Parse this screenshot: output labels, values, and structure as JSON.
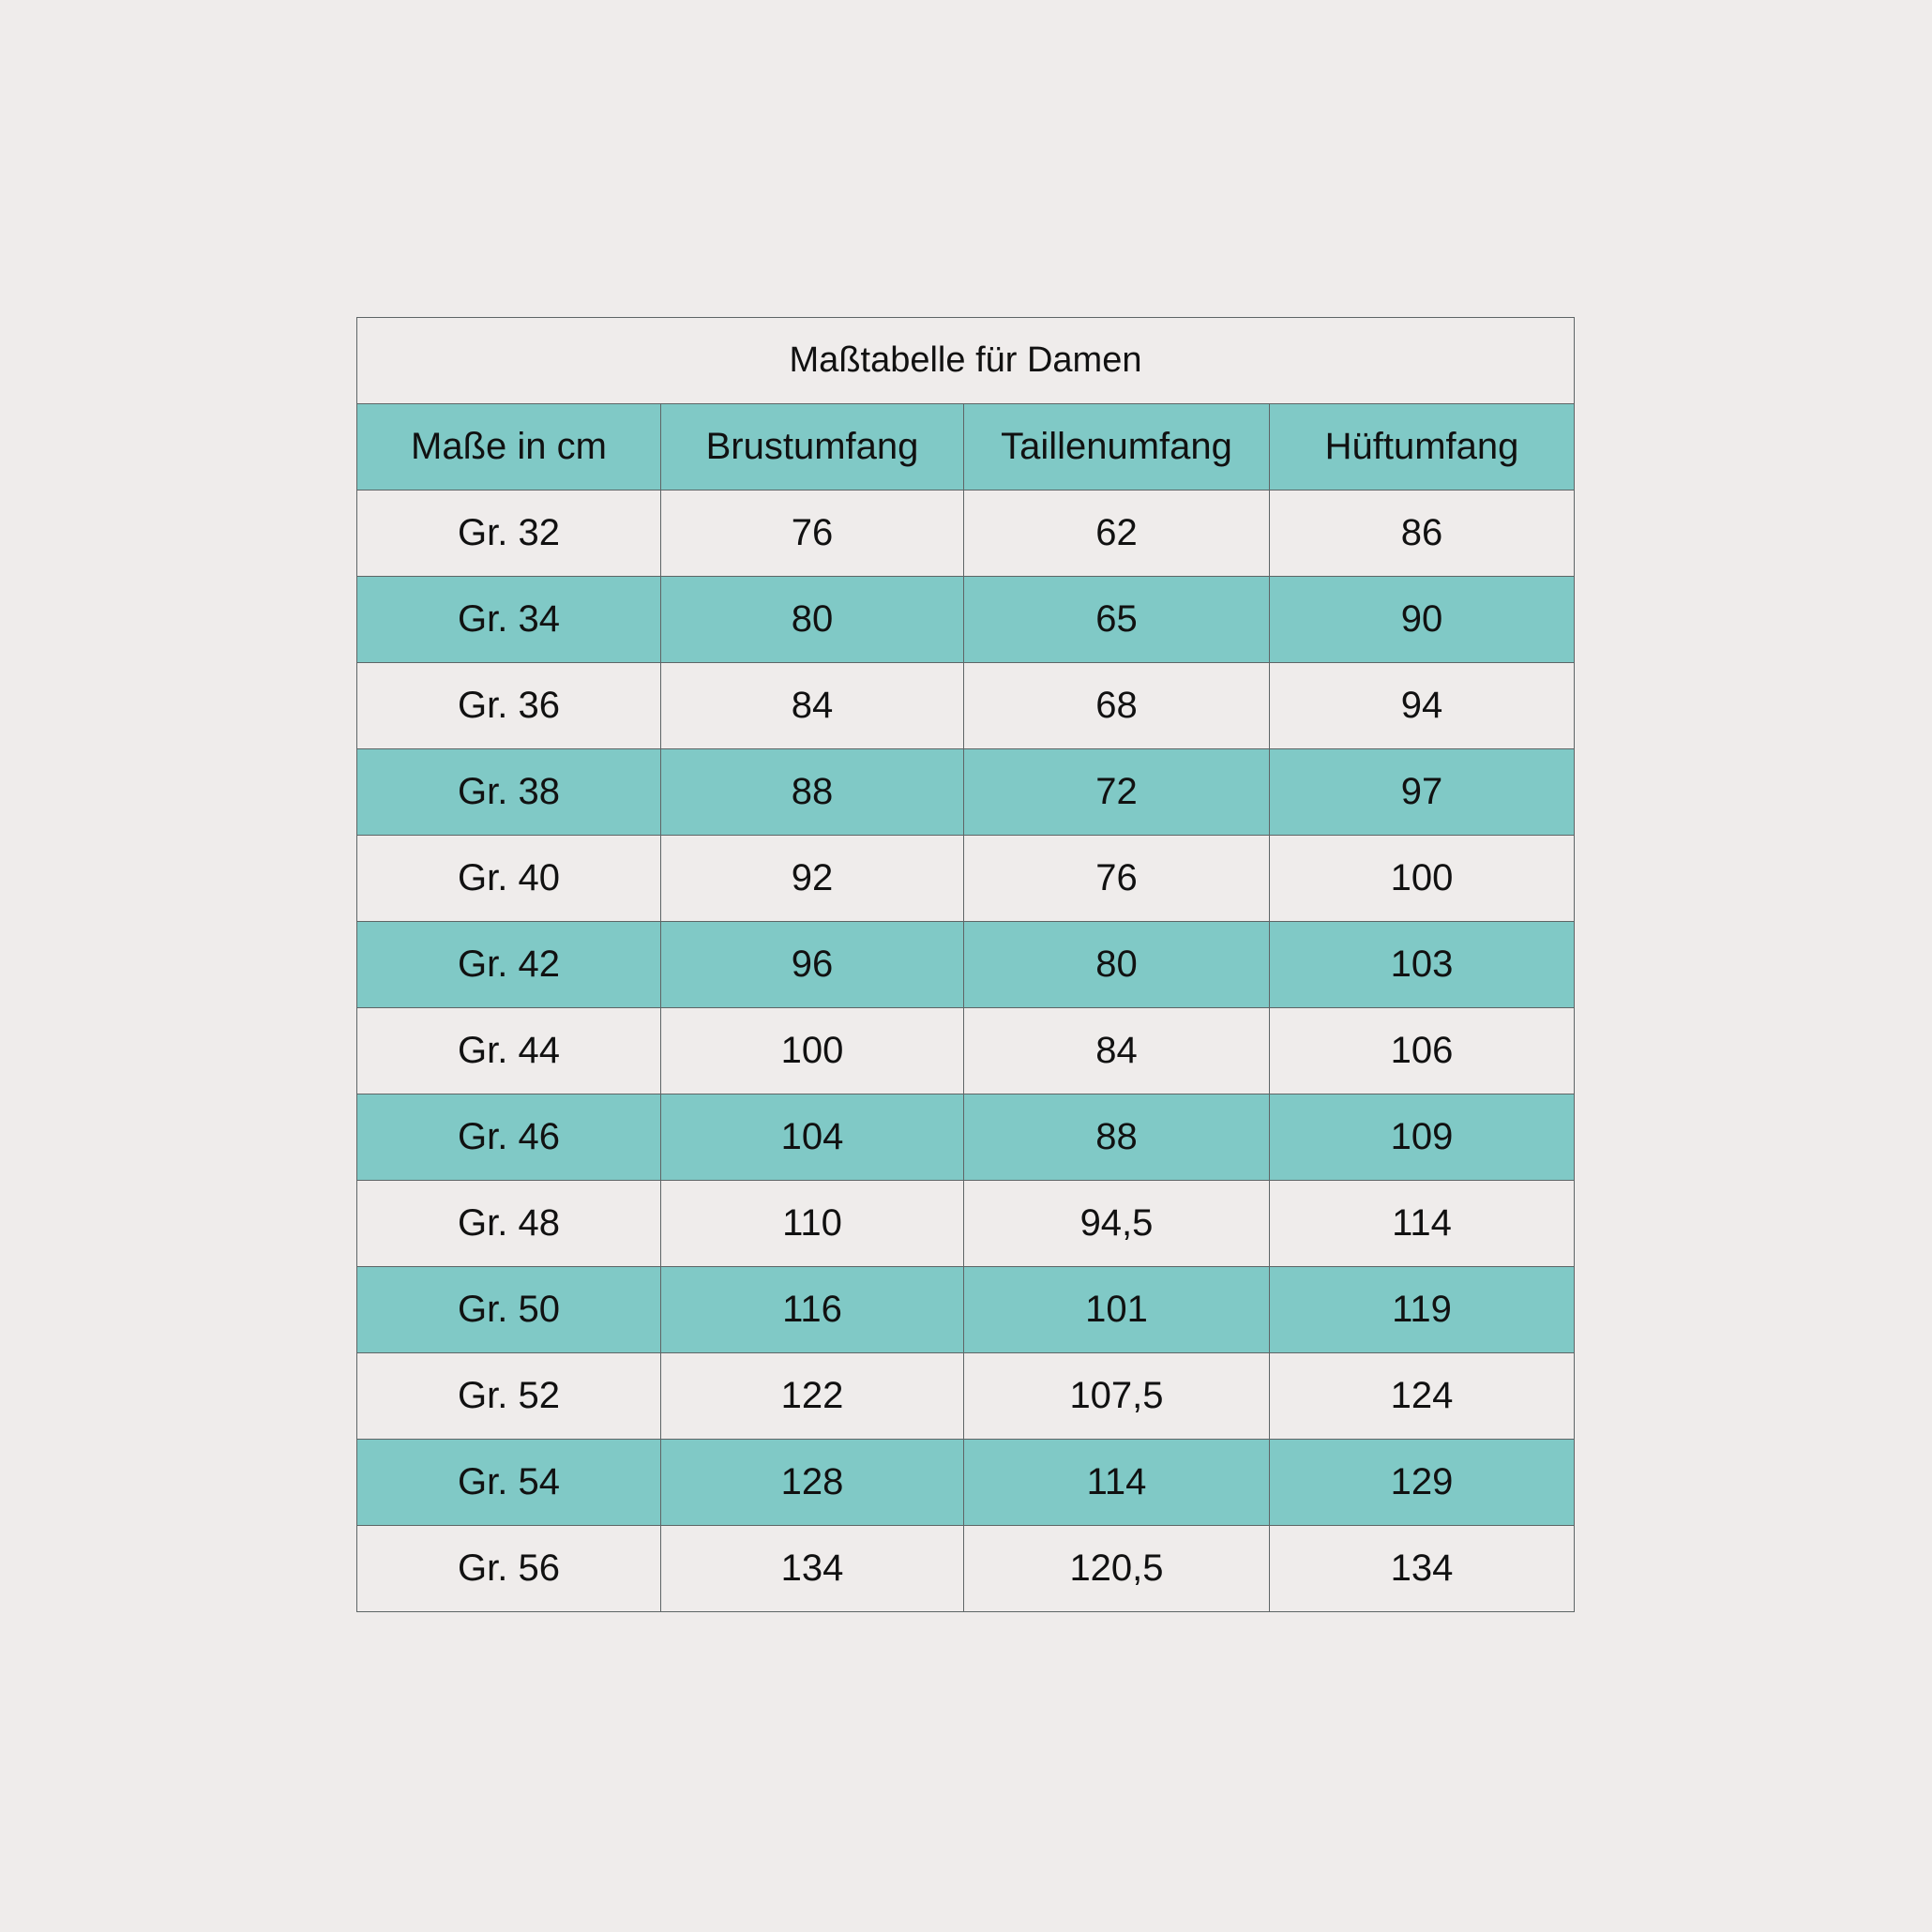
{
  "table": {
    "title": "Maßtabelle für Damen",
    "headers": [
      "Maße in cm",
      "Brustumfang",
      "Taillenumfang",
      "Hüftumfang"
    ],
    "rows": [
      [
        "Gr. 32",
        "76",
        "62",
        "86"
      ],
      [
        "Gr. 34",
        "80",
        "65",
        "90"
      ],
      [
        "Gr. 36",
        "84",
        "68",
        "94"
      ],
      [
        "Gr. 38",
        "88",
        "72",
        "97"
      ],
      [
        "Gr. 40",
        "92",
        "76",
        "100"
      ],
      [
        "Gr. 42",
        "96",
        "80",
        "103"
      ],
      [
        "Gr. 44",
        "100",
        "84",
        "106"
      ],
      [
        "Gr. 46",
        "104",
        "88",
        "109"
      ],
      [
        "Gr. 48",
        "110",
        "94,5",
        "114"
      ],
      [
        "Gr. 50",
        "116",
        "101",
        "119"
      ],
      [
        "Gr. 52",
        "122",
        "107,5",
        "124"
      ],
      [
        "Gr. 54",
        "128",
        "114",
        "129"
      ],
      [
        "Gr. 56",
        "134",
        "120,5",
        "134"
      ]
    ]
  },
  "colors": {
    "accent": "#80c9c6",
    "background": "#efeceb",
    "border": "#5e6566"
  }
}
